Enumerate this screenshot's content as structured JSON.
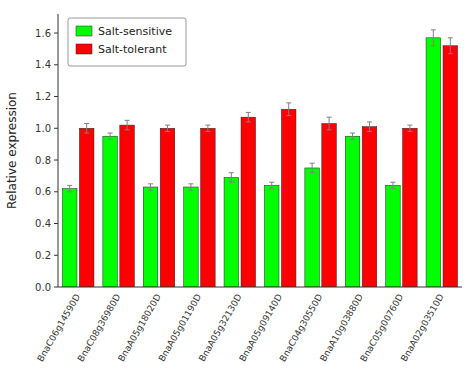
{
  "chart_data": {
    "type": "bar",
    "y_label": "Relative expression",
    "categories": [
      "BnaC06g14590D",
      "BnaC08g36980D",
      "BnaA05g18020D",
      "BnaA05g01190D",
      "BnaA05g32130D",
      "BnaA05g09140D",
      "BnaC04g30550D",
      "BnaA10g03880D",
      "BnaC05g00760D",
      "BnaA02g03510D"
    ],
    "series": [
      {
        "name": "Salt-sensitive",
        "color": "#00FF00",
        "values": [
          0.62,
          0.95,
          0.63,
          0.63,
          0.69,
          0.64,
          0.75,
          0.95,
          0.64,
          1.57
        ],
        "errors": [
          0.02,
          0.02,
          0.02,
          0.02,
          0.03,
          0.02,
          0.03,
          0.02,
          0.02,
          0.05
        ]
      },
      {
        "name": "Salt-tolerant",
        "color": "#FF0000",
        "values": [
          1.0,
          1.02,
          1.0,
          1.0,
          1.07,
          1.12,
          1.03,
          1.01,
          1.0,
          1.52
        ],
        "errors": [
          0.03,
          0.03,
          0.02,
          0.02,
          0.03,
          0.04,
          0.04,
          0.03,
          0.02,
          0.05
        ]
      }
    ],
    "ylim": [
      0.0,
      1.72
    ],
    "yticks": [
      {
        "value": 0.0,
        "label": "0.0"
      },
      0.2,
      0.4,
      0.6,
      0.8,
      {
        "value": 1.0,
        "label": "1.0"
      },
      1.2,
      1.4,
      1.6
    ],
    "grid": false,
    "legend": "upper-left"
  }
}
